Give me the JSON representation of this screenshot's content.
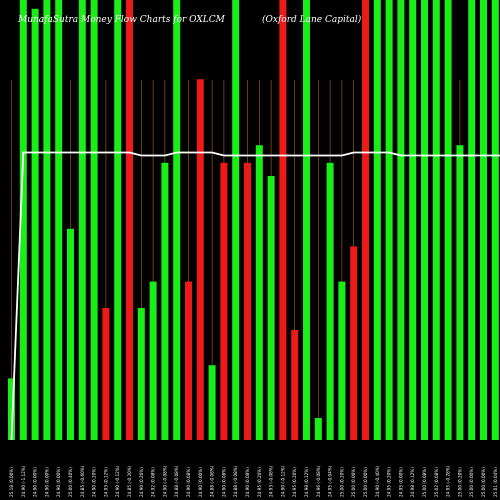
{
  "chart_data": {
    "type": "bar",
    "title": "MunafaSutra  Money Flow  Charts for OXLCM",
    "subtitle": "(Oxford Lane  Capital)",
    "xlabel": "",
    "ylabel": "",
    "grid": false,
    "legend": "none",
    "colors": {
      "up": "#19ee19",
      "down": "#ee1919",
      "line": "#ffffff",
      "divider": "#b0651a",
      "background": "#000000"
    },
    "categories": [
      "25.18 (0.00%)",
      "24.90 (-1.12%)",
      "24.90 (0.00%)",
      "24.90 (0.00%)",
      "24.90 (0.00%)",
      "25.00 (0.40%)",
      "24.85 (-0.60%)",
      "24.90 (0.20%)",
      "24.93 (0.12%)",
      "24.90 (-0.12%)",
      "24.85 (-0.20%)",
      "24.90 (0.20%)",
      "24.92 (0.08%)",
      "24.90 (-0.08%)",
      "24.88 (-0.08%)",
      "24.90 (0.08%)",
      "24.90 (0.00%)",
      "24.88 (-0.08%)",
      "24.90 (0.08%)",
      "24.88 (-0.08%)",
      "24.90 (0.08%)",
      "24.95 (0.20%)",
      "24.93 (-0.08%)",
      "24.90 (-0.12%)",
      "24.95 (0.20%)",
      "24.98 (0.12%)",
      "24.96 (-0.08%)",
      "24.95 (-0.04%)",
      "25.00 (0.20%)",
      "25.00 (0.00%)",
      "25.00 (0.00%)",
      "24.90 (-0.40%)",
      "24.95 (0.20%)",
      "24.95 (0.00%)",
      "24.98 (0.12%)",
      "25.00 (0.08%)",
      "25.02 (0.08%)",
      "24.95 (-0.28%)",
      "25.00 (0.20%)",
      "25.00 (0.00%)",
      "25.00 (0.00%)",
      "25.01 (0.04%)",
      "24.98 (-0.12%)",
      "25.00 (0.08%)",
      "25.02 (0.08%)"
    ],
    "values": [
      14,
      100,
      98,
      100,
      100,
      48,
      100,
      100,
      30,
      100,
      100,
      30,
      36,
      63,
      100,
      36,
      82,
      17,
      63,
      100,
      63,
      67,
      60,
      100,
      25,
      100,
      5,
      63,
      36,
      44,
      100,
      100,
      100,
      100,
      100,
      100,
      100,
      100,
      67,
      100,
      100,
      100,
      100,
      100,
      100
    ],
    "directions": [
      "up",
      "up",
      "up",
      "up",
      "up",
      "up",
      "up",
      "up",
      "down",
      "up",
      "down",
      "up",
      "up",
      "up",
      "up",
      "down",
      "down",
      "up",
      "down",
      "up",
      "down",
      "up",
      "up",
      "down",
      "down",
      "up",
      "up",
      "up",
      "up",
      "down",
      "down",
      "up",
      "up",
      "up",
      "up",
      "up",
      "up",
      "up",
      "up",
      "up",
      "up",
      "up",
      "up",
      "up",
      "up"
    ],
    "price_line": [
      24.9,
      24.98,
      24.98,
      24.98,
      24.98,
      24.98,
      24.98,
      24.98,
      24.98,
      24.98,
      24.98,
      24.97,
      24.97,
      24.97,
      24.98,
      24.98,
      24.98,
      24.98,
      24.97,
      24.97,
      24.97,
      24.97,
      24.97,
      24.97,
      24.97,
      24.97,
      24.97,
      24.97,
      24.97,
      24.98,
      24.98,
      24.98,
      24.98,
      24.97,
      24.97,
      24.97,
      24.97,
      24.97,
      24.97,
      24.97,
      24.97,
      24.97,
      24.97,
      24.97,
      24.97
    ],
    "ylim": [
      0,
      100
    ]
  }
}
